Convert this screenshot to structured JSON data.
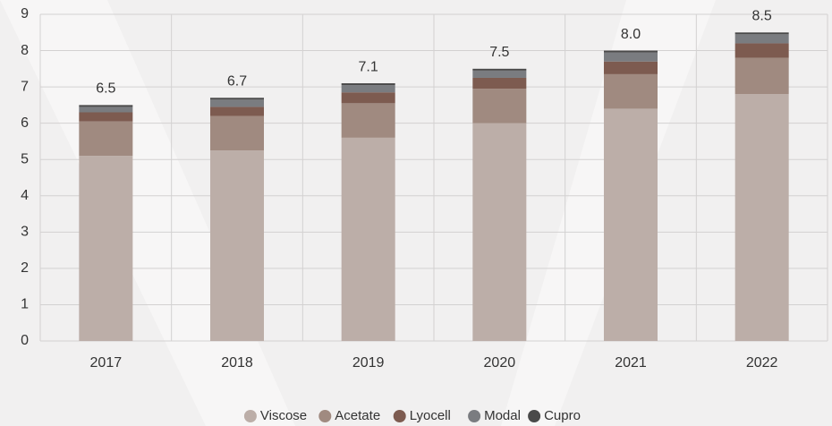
{
  "chart_data": {
    "type": "bar",
    "stacked": true,
    "categories": [
      "2017",
      "2018",
      "2019",
      "2020",
      "2021",
      "2022"
    ],
    "series": [
      {
        "name": "Viscose",
        "color": "#bcaea8",
        "values": [
          5.1,
          5.25,
          5.6,
          6.0,
          6.4,
          6.8
        ]
      },
      {
        "name": "Acetate",
        "color": "#a08a80",
        "values": [
          0.95,
          0.95,
          0.95,
          0.95,
          0.95,
          1.0
        ]
      },
      {
        "name": "Lyocell",
        "color": "#7d5b50",
        "values": [
          0.25,
          0.25,
          0.3,
          0.3,
          0.35,
          0.4
        ]
      },
      {
        "name": "Modal",
        "color": "#7a7c80",
        "values": [
          0.15,
          0.2,
          0.2,
          0.2,
          0.25,
          0.25
        ]
      },
      {
        "name": "Cupro",
        "color": "#4a4a4a",
        "values": [
          0.05,
          0.05,
          0.05,
          0.05,
          0.05,
          0.05
        ]
      }
    ],
    "totals": [
      6.5,
      6.7,
      7.1,
      7.5,
      8.0,
      8.5
    ],
    "total_labels": [
      "6.5",
      "6.7",
      "7.1",
      "7.5",
      "8.0",
      "8.5"
    ],
    "ylim": [
      0,
      9
    ],
    "yticks": [
      0,
      1,
      2,
      3,
      4,
      5,
      6,
      7,
      8,
      9
    ],
    "grid": true,
    "legend": "bottom"
  }
}
